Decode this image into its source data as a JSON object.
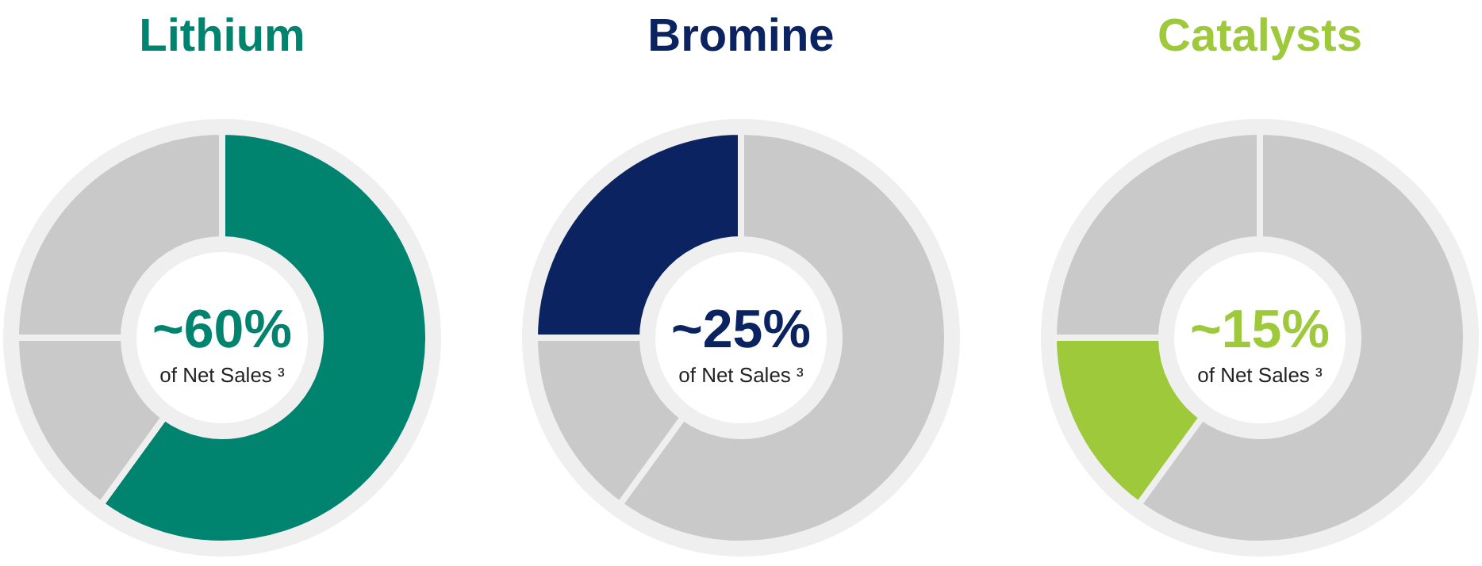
{
  "chart_data": [
    {
      "type": "donut",
      "title": "Lithium",
      "categories": [
        null,
        null,
        null
      ],
      "values": [
        60,
        15,
        25
      ],
      "colors": [
        "#00836f",
        "#c9c9c9",
        "#c9c9c9"
      ],
      "annotations": [
        "~60%",
        "of Net Sales ³"
      ]
    },
    {
      "type": "donut",
      "title": "Bromine",
      "categories": [
        null,
        null,
        null
      ],
      "values": [
        60,
        15,
        25
      ],
      "colors": [
        "#c9c9c9",
        "#c9c9c9",
        "#0b2360"
      ],
      "annotations": [
        "~25%",
        "of Net Sales ³"
      ]
    },
    {
      "type": "donut",
      "title": "Catalysts",
      "categories": [
        null,
        null,
        null
      ],
      "values": [
        60,
        15,
        25
      ],
      "colors": [
        "#c9c9c9",
        "#9dc93b",
        "#c9c9c9"
      ],
      "annotations": [
        "~15%",
        "of Net Sales ³"
      ]
    }
  ]
}
